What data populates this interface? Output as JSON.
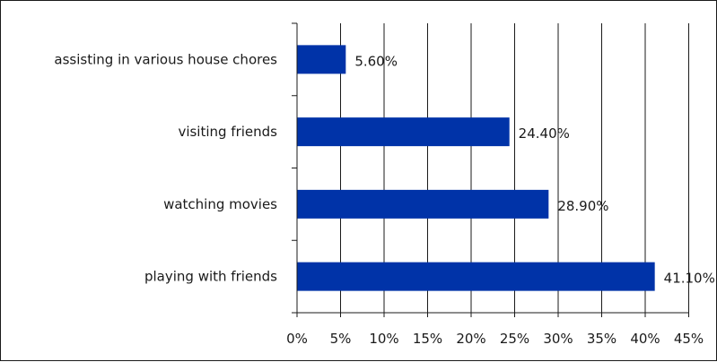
{
  "chart_data": {
    "type": "bar",
    "orientation": "horizontal",
    "categories": [
      "assisting in various house chores",
      "visiting friends",
      "watching movies",
      "playing with friends"
    ],
    "values": [
      5.6,
      24.4,
      28.9,
      41.1
    ],
    "data_labels": [
      "5.60%",
      "24.40%",
      "28.90%",
      "41.10%"
    ],
    "x_ticks": [
      "0%",
      "5%",
      "10%",
      "15%",
      "20%",
      "25%",
      "30%",
      "35%",
      "40%",
      "45%"
    ],
    "xlim": [
      0,
      45
    ],
    "tick_step": 5,
    "grid": true,
    "legend": false,
    "title": "",
    "xlabel": "",
    "ylabel": "",
    "bar_color": "#0033a8"
  }
}
